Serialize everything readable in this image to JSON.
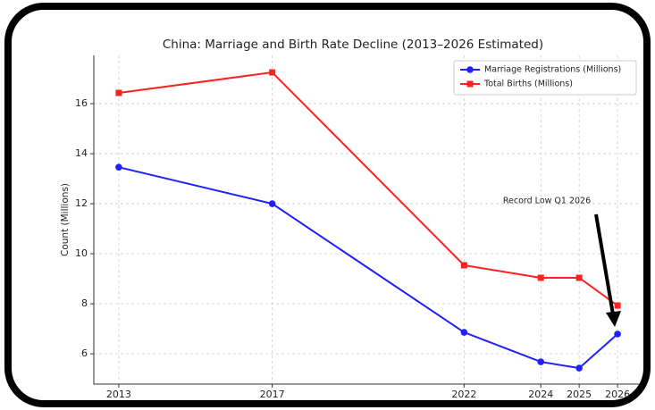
{
  "chart_data": {
    "type": "line",
    "title": "China: Marriage and Birth Rate Decline (2013–2026 Estimated)",
    "y_label": "Count (Millions)",
    "x": [
      2013,
      2017,
      2022,
      2024,
      2025,
      2026
    ],
    "series": [
      {
        "name": "Marriage Registrations (Millions)",
        "color": "#1f1fff",
        "marker": "circle",
        "values": [
          13.46,
          12.0,
          6.86,
          5.68,
          5.43,
          6.79
        ]
      },
      {
        "name": "Total Births (Millions)",
        "color": "#ff2020",
        "marker": "square",
        "values": [
          16.43,
          17.25,
          9.54,
          9.04,
          9.04,
          7.93
        ]
      }
    ],
    "xlim": [
      2012.35,
      2026.58
    ],
    "xticks": [
      2013,
      2017,
      2022,
      2024,
      2025,
      2026
    ],
    "ylim": [
      4.79,
      17.93
    ],
    "yticks": [
      6,
      8,
      10,
      12,
      14,
      16
    ],
    "grid": true,
    "legend": "upper right",
    "annotation": {
      "text": "Record Low Q1 2026"
    }
  }
}
